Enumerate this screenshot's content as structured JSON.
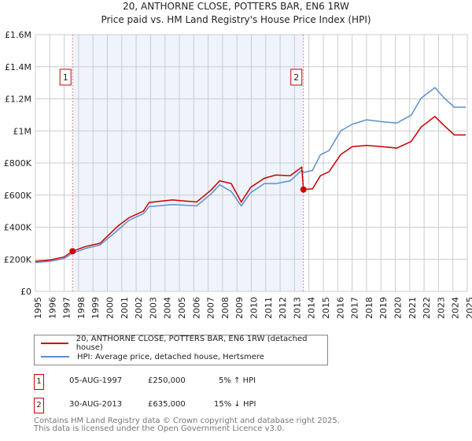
{
  "chart_data": {
    "type": "line",
    "title": "20, ANTHORNE CLOSE, POTTERS BAR, EN6 1RW",
    "subtitle": "Price paid vs. HM Land Registry's House Price Index (HPI)",
    "xlim": [
      1995,
      2025
    ],
    "ylim": [
      0,
      1600000
    ],
    "x_ticks": [
      "1995",
      "1996",
      "1997",
      "1998",
      "1999",
      "2000",
      "2001",
      "2002",
      "2003",
      "2004",
      "2005",
      "2006",
      "2007",
      "2008",
      "2009",
      "2010",
      "2011",
      "2012",
      "2013",
      "2014",
      "2015",
      "2016",
      "2017",
      "2018",
      "2019",
      "2020",
      "2021",
      "2022",
      "2023",
      "2024",
      "2025"
    ],
    "y_ticks": [
      {
        "v": 0,
        "l": "£0"
      },
      {
        "v": 200000,
        "l": "£200K"
      },
      {
        "v": 400000,
        "l": "£400K"
      },
      {
        "v": 600000,
        "l": "£600K"
      },
      {
        "v": 800000,
        "l": "£800K"
      },
      {
        "v": 1000000,
        "l": "£1M"
      },
      {
        "v": 1200000,
        "l": "£1.2M"
      },
      {
        "v": 1400000,
        "l": "£1.4M"
      },
      {
        "v": 1600000,
        "l": "£1.6M"
      }
    ],
    "grid": true,
    "series": [
      {
        "name": "20, ANTHORNE CLOSE, POTTERS BAR, EN6 1RW (detached house)",
        "color": "#cc0000",
        "x": [
          1995,
          1996,
          1997,
          1997.58,
          1998.5,
          1999.5,
          2000.77,
          2001.5,
          2002.5,
          2002.9,
          2004.5,
          2006.2,
          2007.2,
          2007.8,
          2008.6,
          2009.3,
          2009.95,
          2010.9,
          2011.7,
          2012.7,
          2013.5,
          2013.62,
          2014.25,
          2014.8,
          2015.4,
          2016.2,
          2017.0,
          2018.0,
          2019.1,
          2020.1,
          2021.1,
          2021.8,
          2022.75,
          2023.4,
          2024.1,
          2024.9
        ],
        "y": [
          188000,
          195000,
          215000,
          250000,
          280000,
          300000,
          410000,
          459000,
          500000,
          554000,
          570000,
          557000,
          631000,
          689000,
          672000,
          557000,
          648000,
          705000,
          725000,
          721000,
          774000,
          635000,
          639000,
          721000,
          746000,
          852000,
          902000,
          910000,
          902000,
          893000,
          934000,
          1025000,
          1090000,
          1033000,
          975000,
          975000
        ]
      },
      {
        "name": "HPI: Average price, detached house, Hertsmere",
        "color": "#5b8fd0",
        "x": [
          1995,
          1996,
          1997,
          1997.58,
          1998.5,
          1999.5,
          2000.77,
          2001.5,
          2002.5,
          2002.9,
          2004.5,
          2006.2,
          2007.2,
          2007.8,
          2008.6,
          2009.3,
          2009.95,
          2010.9,
          2011.7,
          2012.7,
          2013.5,
          2013.62,
          2014.25,
          2014.8,
          2015.4,
          2016.2,
          2017.0,
          2018.0,
          2019.1,
          2020.1,
          2021.1,
          2021.8,
          2022.75,
          2023.4,
          2024.1,
          2024.9
        ],
        "y": [
          180000,
          187000,
          205000,
          238000,
          268000,
          290000,
          385000,
          443000,
          484000,
          528000,
          541000,
          533000,
          607000,
          664000,
          623000,
          533000,
          615000,
          672000,
          672000,
          689000,
          754000,
          741000,
          754000,
          852000,
          877000,
          1000000,
          1041000,
          1069000,
          1057000,
          1049000,
          1098000,
          1205000,
          1270000,
          1205000,
          1148000,
          1148000
        ]
      }
    ],
    "sales": [
      {
        "label": "1",
        "date": "05-AUG-1997",
        "price": "£250,000",
        "hpi": "5% ↑ HPI",
        "x": 1997.58,
        "y": 250000
      },
      {
        "label": "2",
        "date": "30-AUG-2013",
        "price": "£635,000",
        "hpi": "15% ↓ HPI",
        "x": 2013.62,
        "y": 635000
      }
    ],
    "shade_color": "#eef3fc",
    "legend_position": "below"
  },
  "footer": {
    "line1": "Contains HM Land Registry data © Crown copyright and database right 2025.",
    "line2": "This data is licensed under the Open Government Licence v3.0."
  }
}
